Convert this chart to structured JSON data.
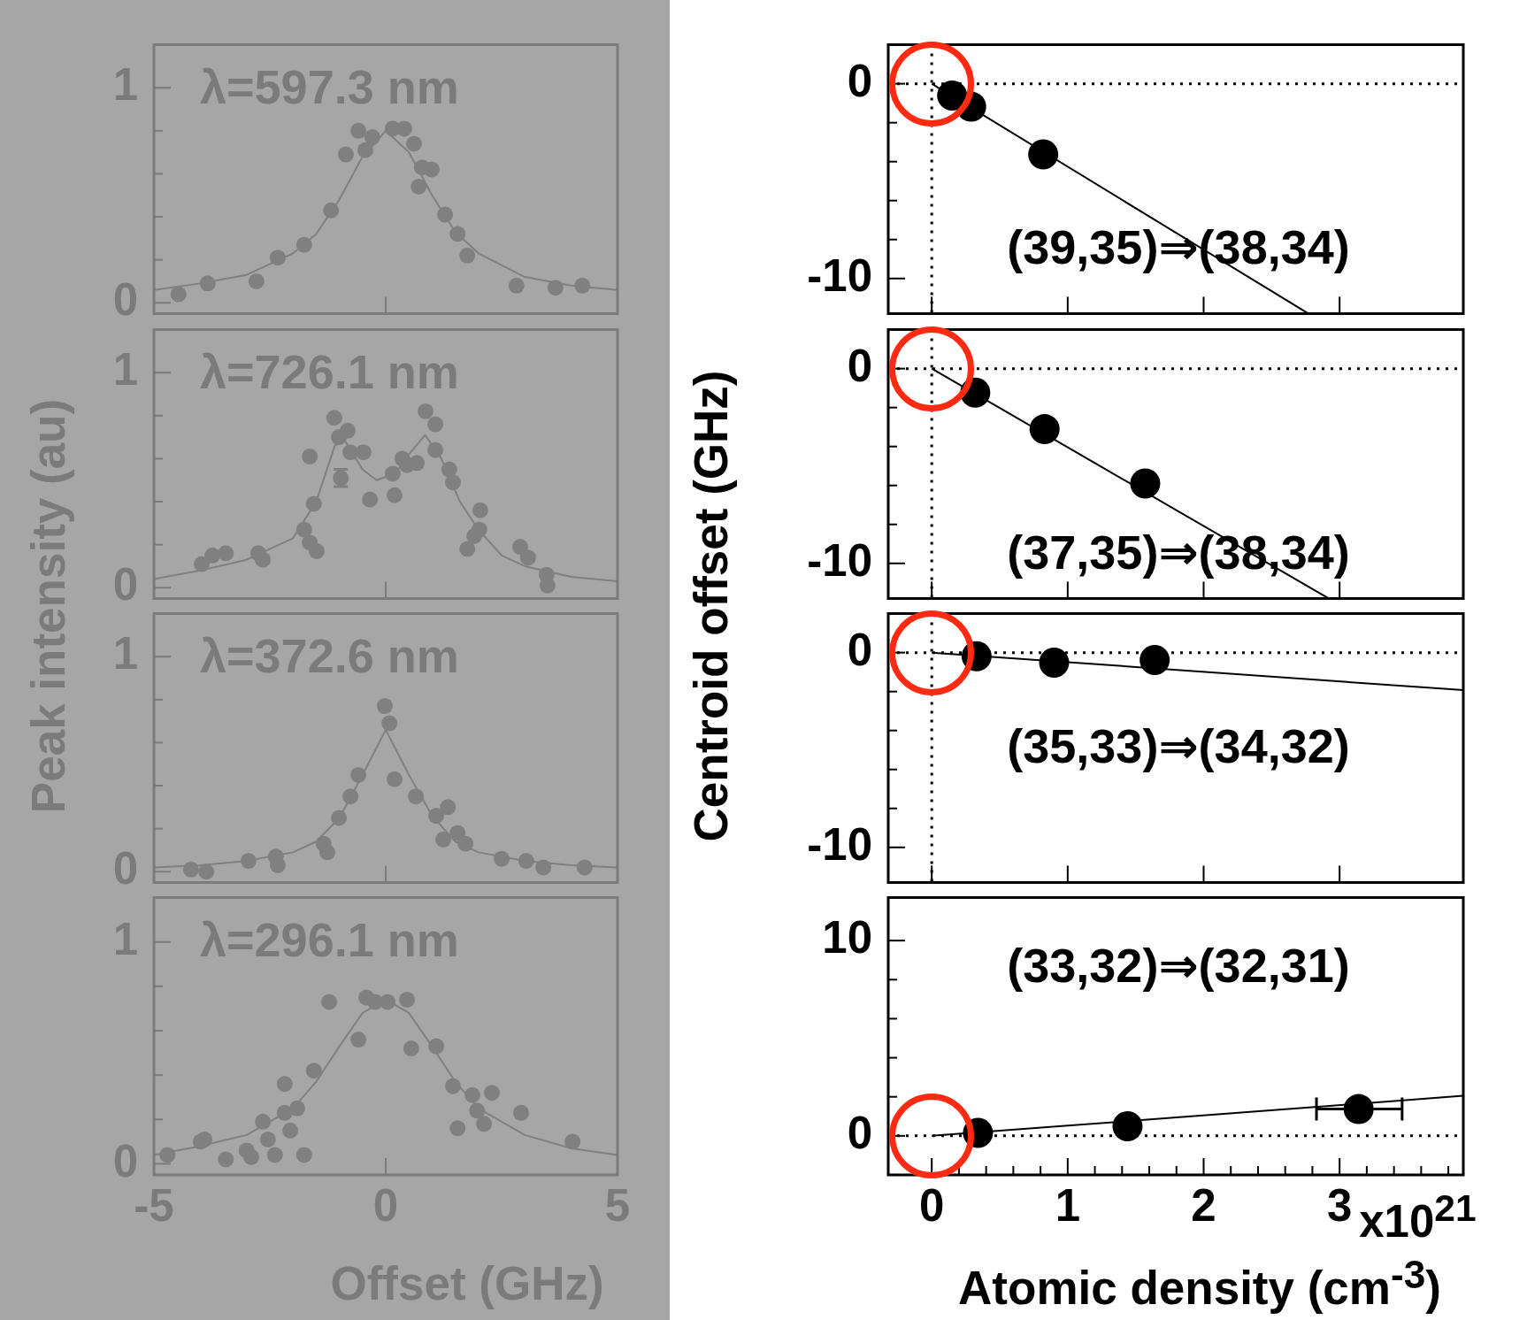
{
  "chart_data": [
    {
      "type": "scatter",
      "ylabel": "Peak intensity (au)",
      "annotations": [
        "λ=597.3 nm"
      ],
      "marker": "circle",
      "tick_labels": "y",
      "xlim": [
        -5,
        5
      ],
      "xticks": [
        -5,
        0,
        5
      ],
      "ylim": [
        -0.05,
        1.2
      ],
      "yticks": [
        0,
        {
          "value": 0.2,
          "label": null
        },
        {
          "value": 0.4,
          "label": null
        },
        {
          "value": 0.6,
          "label": null
        },
        {
          "value": 0.8,
          "label": null
        },
        1
      ],
      "series": [
        {
          "type": "scatter",
          "color": "#808080",
          "x": [
            -4.47,
            -3.84,
            -2.79,
            -2.33,
            -1.76,
            -1.18,
            -0.86,
            -0.59,
            -0.44,
            -0.29,
            0.15,
            0.4,
            0.61,
            0.78,
            0.99,
            0.71,
            1.28,
            1.55,
            1.76,
            2.82,
            3.66,
            4.24
          ],
          "values": [
            0.04,
            0.09,
            0.1,
            0.21,
            0.27,
            0.43,
            0.69,
            0.8,
            0.71,
            0.77,
            0.81,
            0.81,
            0.74,
            0.63,
            0.62,
            0.54,
            0.41,
            0.32,
            0.22,
            0.08,
            0.07,
            0.08
          ]
        },
        {
          "type": "line",
          "marker": "none",
          "color": "#808080",
          "x": [
            -5,
            -4,
            -3,
            -2,
            -1.5,
            -1,
            -0.5,
            0,
            0.5,
            1,
            1.5,
            2,
            3,
            4,
            5
          ],
          "values": [
            0.06,
            0.09,
            0.13,
            0.23,
            0.32,
            0.48,
            0.68,
            0.8,
            0.7,
            0.5,
            0.33,
            0.23,
            0.12,
            0.08,
            0.06
          ]
        }
      ]
    },
    {
      "type": "scatter",
      "annotations": [
        "λ=726.1 nm"
      ],
      "marker": "circle",
      "tick_labels": "y",
      "xlim": [
        -5,
        5
      ],
      "xticks": [
        -5,
        0,
        5
      ],
      "ylim": [
        -0.05,
        1.2
      ],
      "yticks": [
        0,
        {
          "value": 0.2,
          "label": null
        },
        {
          "value": 0.4,
          "label": null
        },
        {
          "value": 0.6,
          "label": null
        },
        {
          "value": 0.8,
          "label": null
        },
        1
      ],
      "series": [
        {
          "type": "scatter",
          "color": "#808080",
          "x": [
            -3.97,
            -3.74,
            -3.45,
            -2.75,
            -2.65,
            -1.76,
            -1.64,
            -1.49,
            -1.55,
            -1.64,
            -1.11,
            -1.01,
            -0.82,
            -0.97,
            -0.76,
            -0.48,
            -0.34,
            0.15,
            0.19,
            0.36,
            0.46,
            0.67,
            0.86,
            1.07,
            1.07,
            1.37,
            1.45,
            2.04,
            1.91,
            1.76,
            2.02,
            2.9,
            3.07,
            3.47,
            3.49
          ],
          "values": [
            0.11,
            0.15,
            0.16,
            0.16,
            0.13,
            0.27,
            0.21,
            0.17,
            0.39,
            0.61,
            0.79,
            0.7,
            0.73,
            0.51,
            0.63,
            0.63,
            0.41,
            0.53,
            0.43,
            0.6,
            0.57,
            0.58,
            0.82,
            0.76,
            0.64,
            0.55,
            0.49,
            0.36,
            0.24,
            0.18,
            0.27,
            0.19,
            0.14,
            0.06,
            0.01
          ],
          "errors": [
            null,
            null,
            null,
            null,
            null,
            null,
            null,
            null,
            null,
            null,
            null,
            null,
            null,
            0.04,
            null,
            null,
            null,
            null,
            null,
            null,
            null,
            null,
            null,
            null,
            null,
            null,
            null,
            null,
            null,
            null,
            null,
            null,
            null,
            null,
            null
          ]
        },
        {
          "type": "line",
          "marker": "none",
          "color": "#808080",
          "x": [
            -5,
            -4,
            -3,
            -2,
            -1.5,
            -1.1,
            -0.9,
            -0.5,
            -0.2,
            0.2,
            0.5,
            0.85,
            1.2,
            1.6,
            2,
            2.5,
            3,
            4,
            5
          ],
          "values": [
            0.04,
            0.08,
            0.13,
            0.23,
            0.4,
            0.66,
            0.69,
            0.55,
            0.5,
            0.53,
            0.62,
            0.71,
            0.6,
            0.4,
            0.27,
            0.15,
            0.1,
            0.05,
            0.03
          ]
        }
      ]
    },
    {
      "type": "scatter",
      "annotations": [
        "λ=372.6 nm"
      ],
      "marker": "circle",
      "tick_labels": "y",
      "xlim": [
        -5,
        5
      ],
      "xticks": [
        -5,
        0,
        5
      ],
      "ylim": [
        -0.05,
        1.2
      ],
      "yticks": [
        0,
        {
          "value": 0.2,
          "label": null
        },
        {
          "value": 0.4,
          "label": null
        },
        {
          "value": 0.6,
          "label": null
        },
        {
          "value": 0.8,
          "label": null
        },
        1
      ],
      "series": [
        {
          "type": "scatter",
          "color": "#808080",
          "x": [
            -4.2,
            -3.87,
            -2.96,
            -2.37,
            -2.33,
            -1.34,
            -1.26,
            -1.01,
            -0.76,
            -0.59,
            -0.02,
            0.08,
            0.19,
            0.65,
            1.09,
            1.34,
            1.24,
            1.55,
            1.72,
            2.5,
            3.03,
            3.4,
            4.29
          ],
          "values": [
            0.01,
            0.0,
            0.05,
            0.07,
            0.03,
            0.13,
            0.09,
            0.25,
            0.35,
            0.45,
            0.77,
            0.69,
            0.43,
            0.35,
            0.26,
            0.3,
            0.15,
            0.18,
            0.13,
            0.06,
            0.05,
            0.02,
            0.02
          ]
        },
        {
          "type": "line",
          "marker": "none",
          "color": "#808080",
          "x": [
            -5,
            -4,
            -3,
            -2,
            -1.5,
            -1,
            -0.5,
            0,
            0.5,
            1,
            1.5,
            2,
            3,
            4,
            5
          ],
          "values": [
            0.02,
            0.03,
            0.05,
            0.09,
            0.14,
            0.25,
            0.45,
            0.66,
            0.45,
            0.26,
            0.14,
            0.09,
            0.05,
            0.03,
            0.02
          ]
        }
      ]
    },
    {
      "type": "scatter",
      "xlabel": "Offset (GHz)",
      "annotations": [
        "λ=296.1 nm"
      ],
      "marker": "circle",
      "xlim": [
        -5,
        5
      ],
      "xticks": [
        -5,
        0,
        5
      ],
      "ylim": [
        -0.05,
        1.2
      ],
      "yticks": [
        0,
        {
          "value": 0.2,
          "label": null
        },
        {
          "value": 0.4,
          "label": null
        },
        {
          "value": 0.6,
          "label": null
        },
        {
          "value": 0.8,
          "label": null
        },
        1
      ],
      "series": [
        {
          "type": "scatter",
          "color": "#808080",
          "x": [
            -4.71,
            -3.99,
            -3.91,
            -3.45,
            -3.0,
            -2.9,
            -2.65,
            -2.54,
            -2.39,
            -2.18,
            -2.18,
            -2.06,
            -1.91,
            -1.76,
            -1.55,
            -1.22,
            -0.59,
            -0.42,
            -0.23,
            0.04,
            0.46,
            0.55,
            1.09,
            1.45,
            1.55,
            1.87,
            1.97,
            2.12,
            2.29,
            2.92,
            4.03
          ],
          "values": [
            0.04,
            0.1,
            0.11,
            0.02,
            0.06,
            0.03,
            0.19,
            0.11,
            0.04,
            0.23,
            0.36,
            0.15,
            0.25,
            0.04,
            0.42,
            0.73,
            0.56,
            0.75,
            0.73,
            0.73,
            0.74,
            0.52,
            0.53,
            0.35,
            0.16,
            0.31,
            0.24,
            0.18,
            0.32,
            0.23,
            0.1
          ]
        },
        {
          "type": "line",
          "marker": "none",
          "color": "#808080",
          "x": [
            -5,
            -4,
            -3,
            -2,
            -1.5,
            -1,
            -0.5,
            0,
            0.5,
            1,
            1.5,
            2,
            3,
            4,
            5
          ],
          "values": [
            0.04,
            0.08,
            0.13,
            0.25,
            0.37,
            0.53,
            0.68,
            0.74,
            0.68,
            0.53,
            0.37,
            0.25,
            0.13,
            0.07,
            0.04
          ]
        }
      ]
    },
    {
      "type": "scatter",
      "ylabel": "Centroid offset (GHz)",
      "annotations": [
        "(39,35)⇒(38,34)"
      ],
      "marker": "circle",
      "tick_labels": "y",
      "xlim": [
        -0.32,
        3.91
      ],
      "xticks": [
        0,
        1,
        2,
        3
      ],
      "ylim": [
        -11.8,
        2
      ],
      "yticks": [
        0,
        {
          "value": -2,
          "label": null
        },
        {
          "value": -4,
          "label": null
        },
        {
          "value": -6,
          "label": null
        },
        {
          "value": -8,
          "label": null
        },
        -10
      ],
      "ref_lines": [
        {
          "axis": "x",
          "value": 0,
          "line_style": "dotted"
        },
        {
          "axis": "y",
          "value": 0,
          "line_style": "dotted"
        }
      ],
      "series": [
        {
          "type": "scatter",
          "color": "#000000",
          "x": [
            0.15,
            0.29,
            0.82
          ],
          "values": [
            -0.61,
            -1.18,
            -3.63
          ]
        },
        {
          "type": "line",
          "color": "#000000",
          "x": [
            0,
            2.77
          ],
          "values": [
            0,
            -11.8
          ]
        }
      ]
    },
    {
      "type": "scatter",
      "annotations": [
        "(37,35)⇒(38,34)"
      ],
      "marker": "circle",
      "tick_labels": "y",
      "xlim": [
        -0.32,
        3.91
      ],
      "xticks": [
        0,
        1,
        2,
        3
      ],
      "ylim": [
        -11.8,
        2
      ],
      "yticks": [
        0,
        {
          "value": -2,
          "label": null
        },
        {
          "value": -4,
          "label": null
        },
        {
          "value": -6,
          "label": null
        },
        {
          "value": -8,
          "label": null
        },
        -10
      ],
      "ref_lines": [
        {
          "axis": "x",
          "value": 0,
          "line_style": "dotted"
        },
        {
          "axis": "y",
          "value": 0,
          "line_style": "dotted"
        }
      ],
      "series": [
        {
          "type": "scatter",
          "color": "#000000",
          "x": [
            0.32,
            0.83,
            1.57
          ],
          "values": [
            -1.23,
            -3.11,
            -5.9
          ]
        },
        {
          "type": "line",
          "color": "#000000",
          "x": [
            0,
            2.92
          ],
          "values": [
            0,
            -11.8
          ]
        }
      ]
    },
    {
      "type": "scatter",
      "annotations": [
        "(35,33)⇒(34,32)"
      ],
      "marker": "circle",
      "tick_labels": "y",
      "xlim": [
        -0.32,
        3.91
      ],
      "xticks": [
        0,
        1,
        2,
        3
      ],
      "ylim": [
        -11.8,
        2
      ],
      "yticks": [
        0,
        {
          "value": -2,
          "label": null
        },
        {
          "value": -4,
          "label": null
        },
        {
          "value": -6,
          "label": null
        },
        {
          "value": -8,
          "label": null
        },
        -10
      ],
      "ref_lines": [
        {
          "axis": "x",
          "value": 0,
          "line_style": "dotted"
        },
        {
          "axis": "y",
          "value": 0,
          "line_style": "dotted"
        }
      ],
      "series": [
        {
          "type": "scatter",
          "color": "#000000",
          "x": [
            0.33,
            0.9,
            1.64
          ],
          "values": [
            -0.19,
            -0.52,
            -0.38
          ]
        },
        {
          "type": "line",
          "color": "#000000",
          "x": [
            0,
            3.91
          ],
          "values": [
            0,
            -1.93
          ]
        }
      ]
    },
    {
      "type": "scatter",
      "xlabel": "Atomic density (cm$^{-3}$)",
      "annotations": [
        "(33,32)⇒(32,31)",
        "x10$^{21}$"
      ],
      "marker": "circle",
      "xlim": [
        -0.32,
        3.91
      ],
      "xticks": [
        0,
        {
          "value": 0.2,
          "label": null
        },
        {
          "value": 0.4,
          "label": null
        },
        {
          "value": 0.6,
          "label": null
        },
        {
          "value": 0.8,
          "label": null
        },
        1,
        {
          "value": 1.2,
          "label": null
        },
        {
          "value": 1.4,
          "label": null
        },
        {
          "value": 1.6,
          "label": null
        },
        {
          "value": 1.8,
          "label": null
        },
        2,
        {
          "value": 2.2,
          "label": null
        },
        {
          "value": 2.4,
          "label": null
        },
        {
          "value": 2.6,
          "label": null
        },
        {
          "value": 2.8,
          "label": null
        },
        3,
        {
          "value": 3.2,
          "label": null
        },
        {
          "value": 3.4,
          "label": null
        },
        {
          "value": 3.6,
          "label": null
        },
        {
          "value": 3.8,
          "label": null
        }
      ],
      "ylim": [
        -2,
        12.2
      ],
      "yticks": [
        0,
        {
          "value": 2,
          "label": null
        },
        {
          "value": 4,
          "label": null
        },
        {
          "value": 6,
          "label": null
        },
        {
          "value": 8,
          "label": null
        },
        10
      ],
      "ref_lines": [
        {
          "axis": "y",
          "value": 0,
          "line_style": "dotted"
        }
      ],
      "series": [
        {
          "type": "scatter",
          "color": "#000000",
          "x": [
            0.34,
            1.44,
            3.14
          ],
          "values": [
            0.15,
            0.49,
            1.37
          ],
          "xerrors": [
            null,
            null,
            [
              2.83,
              3.46
            ]
          ]
        },
        {
          "type": "line",
          "color": "#000000",
          "x": [
            0,
            3.91
          ],
          "values": [
            0,
            2.05
          ]
        }
      ]
    }
  ]
}
